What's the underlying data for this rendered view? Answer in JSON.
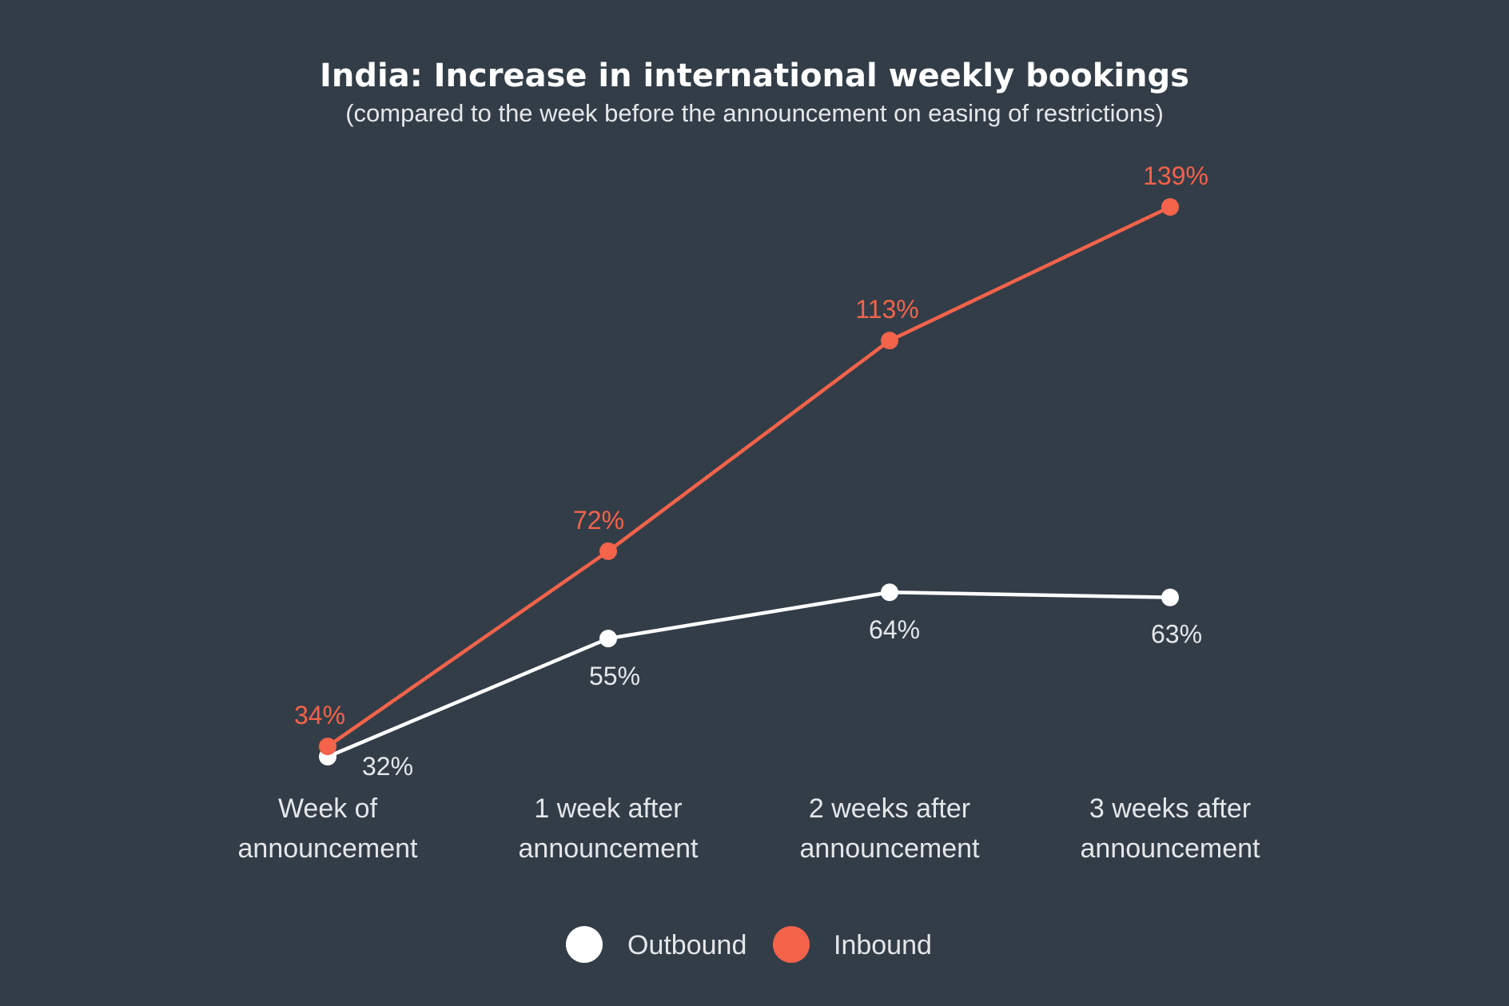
{
  "chart_data": {
    "type": "line",
    "title": "India: Increase in international weekly bookings",
    "subtitle": "(compared to the week before the announcement on easing of restrictions)",
    "categories": [
      [
        "Week of",
        "announcement"
      ],
      [
        "1 week after",
        "announcement"
      ],
      [
        "2 weeks after",
        "announcement"
      ],
      [
        "3 weeks after",
        "announcement"
      ]
    ],
    "series": [
      {
        "name": "Outbound",
        "color": "#ffffff",
        "label_color": "#e4e7ea",
        "values": [
          32,
          55,
          64,
          63
        ],
        "labels": [
          "32%",
          "55%",
          "64%",
          "63%"
        ]
      },
      {
        "name": "Inbound",
        "color": "#f4634a",
        "label_color": "#f4634a",
        "values": [
          34,
          72,
          113,
          139
        ],
        "labels": [
          "34%",
          "72%",
          "113%",
          "139%"
        ]
      }
    ],
    "ylim": [
      30,
      140
    ],
    "grid": false,
    "legend_position": "bottom-center",
    "background": "#333d48"
  }
}
